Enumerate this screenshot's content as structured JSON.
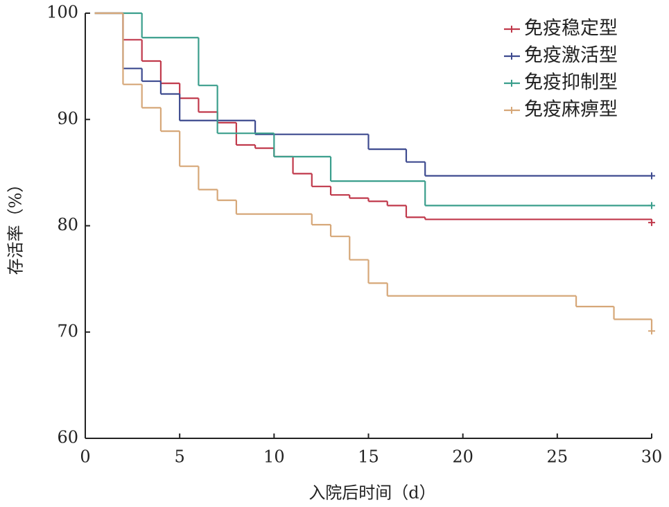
{
  "chart_data": {
    "type": "step",
    "x_label": "入院后时间（d）",
    "y_label": "存活率（%）",
    "xlim": [
      0,
      30
    ],
    "xticks": [
      0,
      5,
      10,
      15,
      20,
      25,
      30
    ],
    "ylim": [
      60,
      100
    ],
    "yticks": [
      60,
      70,
      80,
      90,
      100
    ],
    "series": [
      {
        "name": "免疫稳定型",
        "color": "#c0394b",
        "x": [
          0.5,
          2,
          3,
          4,
          5,
          6,
          7,
          8,
          9,
          10,
          11,
          12,
          13,
          14,
          15,
          16,
          17,
          18,
          30
        ],
        "values": [
          100,
          97.5,
          95.5,
          93.4,
          92.0,
          90.7,
          89.7,
          87.6,
          87.3,
          86.5,
          84.9,
          83.7,
          82.9,
          82.6,
          82.3,
          81.9,
          80.8,
          80.6,
          80.3
        ]
      },
      {
        "name": "免疫激活型",
        "color": "#3d4a8f",
        "x": [
          0.5,
          2,
          3,
          4,
          5,
          9,
          15,
          17,
          18,
          30
        ],
        "values": [
          100,
          94.8,
          93.6,
          92.4,
          89.9,
          88.6,
          87.2,
          86.0,
          84.7,
          84.7
        ]
      },
      {
        "name": "免疫抑制型",
        "color": "#3a9e8c",
        "x": [
          0.5,
          3,
          6,
          7,
          10,
          13,
          18,
          30
        ],
        "values": [
          100,
          97.7,
          93.2,
          88.7,
          86.5,
          84.2,
          81.9,
          81.9
        ]
      },
      {
        "name": "免疫麻痹型",
        "color": "#d6a778",
        "x": [
          0.5,
          2,
          3,
          4,
          5,
          6,
          7,
          8,
          12,
          13,
          14,
          15,
          16,
          26,
          28,
          30
        ],
        "values": [
          100,
          93.3,
          91.1,
          88.9,
          85.6,
          83.4,
          82.4,
          81.1,
          80.1,
          79.0,
          76.8,
          74.6,
          73.4,
          72.4,
          71.2,
          70.1
        ]
      }
    ]
  }
}
